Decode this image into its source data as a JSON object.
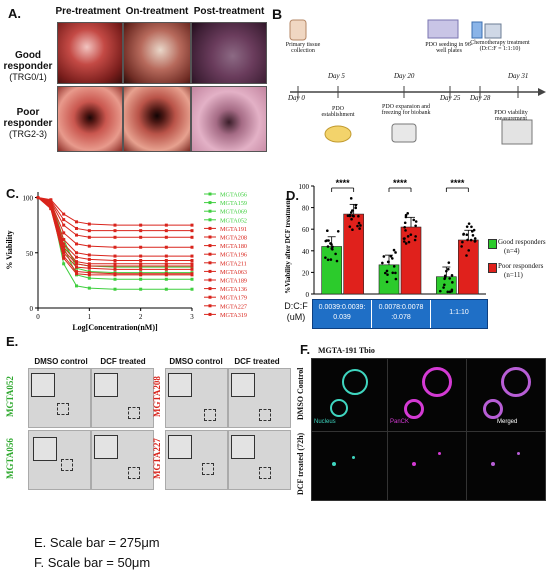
{
  "panelA": {
    "label": "A.",
    "columns": [
      "Pre-treatment",
      "On-treatment",
      "Post-treatment"
    ],
    "rows": [
      {
        "title": "Good",
        "title2": "responder",
        "sub": "(TRG0/1)"
      },
      {
        "title": "Poor",
        "title2": "responder",
        "sub": "(TRG2-3)"
      }
    ]
  },
  "panelB": {
    "label": "B",
    "days": [
      "Day 0",
      "Day 5",
      "Day 20",
      "Day 25",
      "Day 28",
      "Day 31"
    ],
    "steps": [
      "Primary tissue collection",
      "PDO establishment",
      "PDO expansion and freezing for biobank",
      "PDO seeding in 96-well plates",
      "Chemotherapy treatment (D:C:F = 1:1:10)",
      "PDO viability measurement"
    ]
  },
  "panelC": {
    "label": "C.",
    "ylabel": "% Viability",
    "xlabel": "Log[Concentration(nM)]",
    "yticks": [
      "0",
      "50",
      "100"
    ],
    "xticks": [
      "0",
      "1",
      "2",
      "3"
    ],
    "green_color": "#3fcf3f",
    "red_color": "#d9241c"
  },
  "chart_data": [
    {
      "type": "line",
      "xlabel": "Log[Concentration(nM)]",
      "ylabel": "% Viability",
      "xlim": [
        0,
        3
      ],
      "ylim": [
        0,
        105
      ],
      "x": [
        0,
        0.25,
        0.5,
        0.75,
        1.0,
        1.5,
        2.0,
        2.5,
        3.0
      ],
      "series": [
        {
          "name": "MGTA056",
          "group": "good",
          "values": [
            100,
            95,
            40,
            20,
            18,
            17,
            17,
            17,
            17
          ]
        },
        {
          "name": "MGTA159",
          "group": "good",
          "values": [
            100,
            96,
            55,
            30,
            27,
            26,
            26,
            26,
            26
          ]
        },
        {
          "name": "MGTA069",
          "group": "good",
          "values": [
            100,
            97,
            62,
            36,
            33,
            32,
            32,
            32,
            32
          ]
        },
        {
          "name": "MGTA052",
          "group": "good",
          "values": [
            100,
            96,
            58,
            40,
            38,
            37,
            37,
            37,
            37
          ]
        },
        {
          "name": "MGTA191",
          "group": "poor",
          "values": [
            100,
            98,
            85,
            78,
            76,
            75,
            75,
            75,
            75
          ]
        },
        {
          "name": "MGTA208",
          "group": "poor",
          "values": [
            100,
            97,
            80,
            72,
            70,
            70,
            70,
            70,
            70
          ]
        },
        {
          "name": "MGTA180",
          "group": "poor",
          "values": [
            100,
            96,
            75,
            66,
            64,
            64,
            64,
            64,
            64
          ]
        },
        {
          "name": "MGTA196",
          "group": "poor",
          "values": [
            100,
            95,
            68,
            58,
            56,
            55,
            55,
            55,
            55
          ]
        },
        {
          "name": "MGTA211",
          "group": "poor",
          "values": [
            100,
            94,
            62,
            50,
            48,
            47,
            47,
            47,
            47
          ]
        },
        {
          "name": "MGTA063",
          "group": "poor",
          "values": [
            100,
            93,
            58,
            46,
            44,
            43,
            43,
            43,
            43
          ]
        },
        {
          "name": "MGTA189",
          "group": "poor",
          "values": [
            100,
            92,
            55,
            42,
            40,
            40,
            40,
            40,
            40
          ]
        },
        {
          "name": "MGTA136",
          "group": "poor",
          "values": [
            100,
            92,
            52,
            40,
            38,
            38,
            38,
            38,
            38
          ]
        },
        {
          "name": "MGTA179",
          "group": "poor",
          "values": [
            100,
            91,
            50,
            37,
            36,
            35,
            35,
            35,
            35
          ]
        },
        {
          "name": "MGTA227",
          "group": "poor",
          "values": [
            100,
            90,
            47,
            33,
            32,
            31,
            31,
            31,
            31
          ]
        },
        {
          "name": "MGTA319",
          "group": "poor",
          "values": [
            100,
            90,
            45,
            31,
            30,
            30,
            30,
            30,
            30
          ]
        }
      ]
    },
    {
      "type": "bar",
      "ylabel": "%Viability after DCF treatment",
      "ylim": [
        0,
        100
      ],
      "yticks": [
        "0",
        "20",
        "40",
        "60",
        "80",
        "100"
      ],
      "categories": [
        "0.0039:0.0039:0.039",
        "0.0078:0.0078:0.078",
        "1:1:10"
      ],
      "xlabel": "D:C:F (uM)",
      "significance": [
        "****",
        "****",
        "****"
      ],
      "series": [
        {
          "name": "Good responders (n=4)",
          "color": "#2ccb2c",
          "values": [
            44,
            27,
            16
          ]
        },
        {
          "name": "Poor responders (n=11)",
          "color": "#e0211c",
          "values": [
            74,
            62,
            50
          ]
        }
      ]
    }
  ],
  "panelD": {
    "label": "D.",
    "ylabel": "%Viability after DCF treatment",
    "xlabel_top": "D:C:F",
    "xlabel_bottom": "(uM)",
    "legend_good": "Good responders",
    "legend_good_n": "(n=4)",
    "legend_poor": "Poor responders",
    "legend_poor_n": "(n=11)",
    "cat_lines": [
      [
        "0.0039:0.0039:",
        "0.039"
      ],
      [
        "0.0078:0.0078",
        ":0.078"
      ],
      [
        "1:1:10",
        ""
      ]
    ],
    "box_color": "#1f6fc6"
  },
  "panelE": {
    "label": "E.",
    "headers": [
      "DMSO control",
      "DCF treated",
      "DMSO control",
      "DCF treated"
    ],
    "samples_left": [
      "MGTA052",
      "MGTA056"
    ],
    "samples_right": [
      "MGTA208",
      "MGTA227"
    ]
  },
  "panelF": {
    "label": "F.",
    "title": "MGTA-191 Tbio",
    "rows": [
      "DMSO Control",
      "DCF treated (72h)"
    ],
    "channels": [
      "Nucleus",
      "PanCK",
      "Merged"
    ]
  },
  "footer": {
    "line1": "E. Scale bar = 275μm",
    "line2": "F. Scale bar = 50μm"
  }
}
